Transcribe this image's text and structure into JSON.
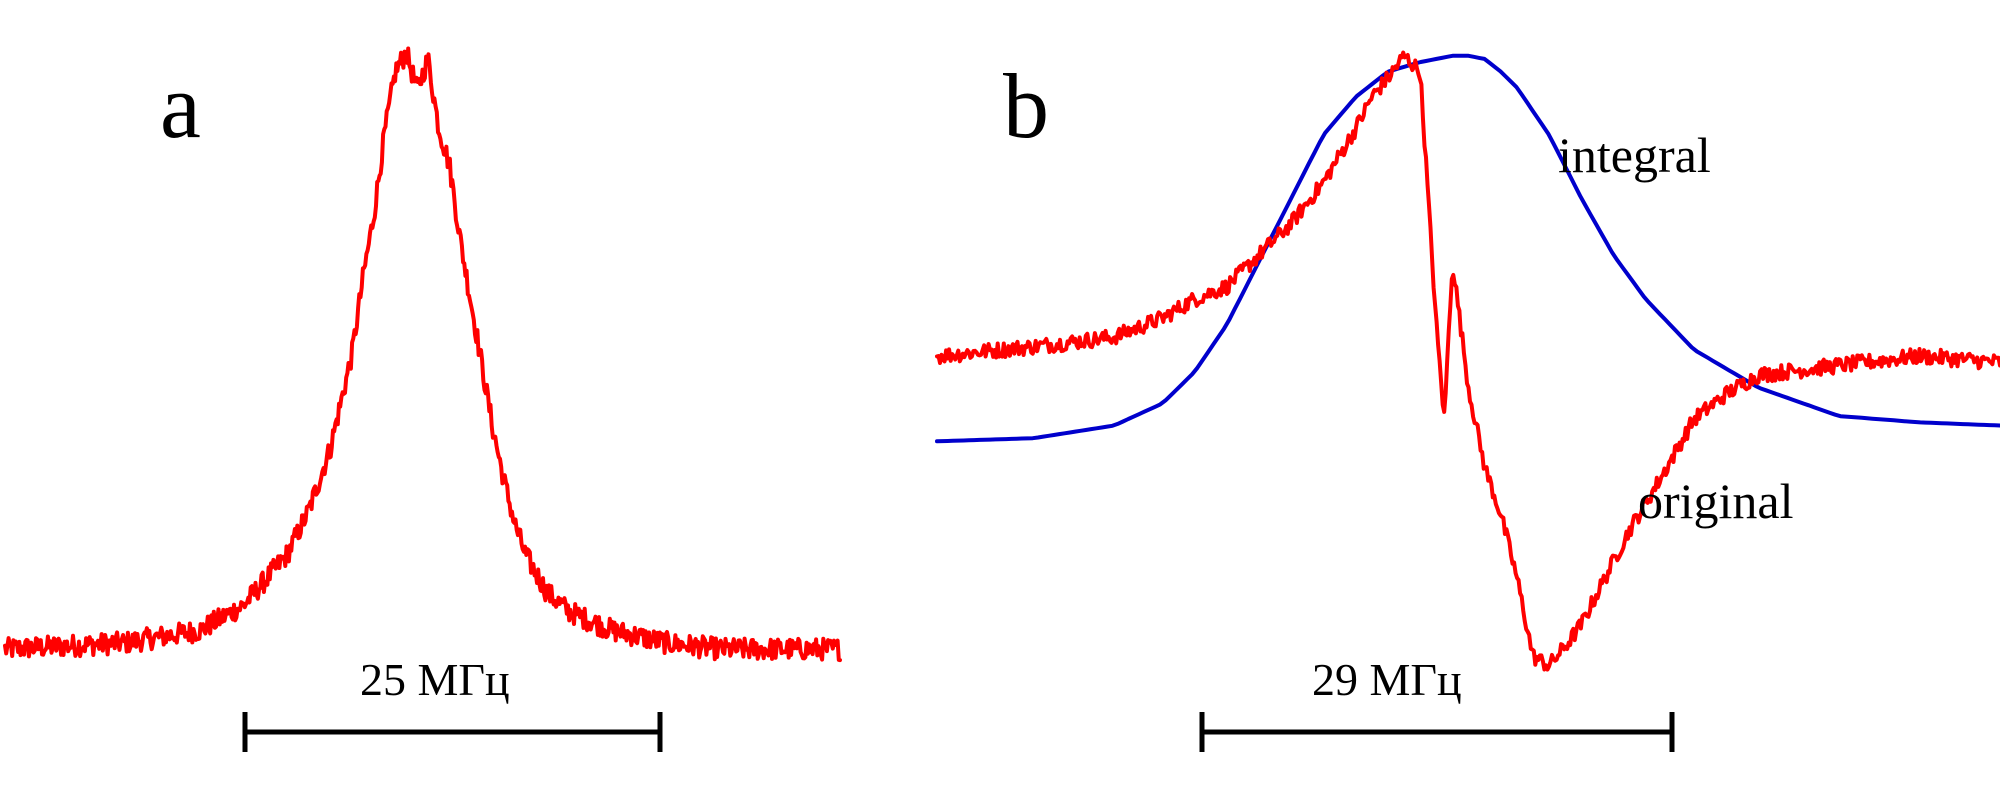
{
  "colors": {
    "original": "#ff0000",
    "integral": "#0000cc",
    "scale_bar": "#000000"
  },
  "chart_data": [
    {
      "type": "line",
      "panel_label": "a",
      "title": "",
      "xlabel": "",
      "ylabel": "",
      "axes_visible": false,
      "scale_bar": {
        "label": "25 МГц",
        "value": 25,
        "unit": "МГц"
      },
      "xlim": [
        -36,
        41
      ],
      "ylim": [
        0,
        1
      ],
      "series": [
        {
          "name": "",
          "color": "#ff0000",
          "x": [
            -36,
            -25,
            -18,
            -14,
            -12,
            -10,
            -8,
            -6,
            -4,
            -3,
            -2,
            -1,
            0,
            1,
            2,
            3,
            4,
            5,
            6,
            7,
            8,
            9,
            10,
            11,
            12,
            14,
            16,
            20,
            25,
            30,
            41
          ],
          "y": [
            0.03,
            0.04,
            0.06,
            0.1,
            0.14,
            0.18,
            0.25,
            0.35,
            0.5,
            0.62,
            0.72,
            0.85,
            0.95,
            0.98,
            0.92,
            0.97,
            0.86,
            0.8,
            0.68,
            0.58,
            0.48,
            0.38,
            0.3,
            0.23,
            0.18,
            0.12,
            0.09,
            0.06,
            0.04,
            0.03,
            0.03
          ]
        }
      ]
    },
    {
      "type": "line",
      "panel_label": "b",
      "title": "",
      "xlabel": "",
      "ylabel": "",
      "axes_visible": false,
      "scale_bar": {
        "label": "29 МГц",
        "value": 29,
        "unit": "МГц"
      },
      "xlim": [
        -31,
        35
      ],
      "ylim": [
        -1,
        1
      ],
      "series": [
        {
          "name": "original",
          "color": "#ff0000",
          "x": [
            -31,
            -25,
            -20,
            -17,
            -15,
            -13,
            -11,
            -9,
            -7,
            -5,
            -4,
            -3,
            -2,
            -1,
            0,
            0.5,
            1,
            2,
            3,
            4,
            5,
            6,
            7,
            8,
            9,
            10,
            12,
            14,
            16,
            18,
            20,
            25,
            30,
            35
          ],
          "y": [
            0.0,
            0.03,
            0.06,
            0.12,
            0.18,
            0.22,
            0.32,
            0.42,
            0.55,
            0.72,
            0.82,
            0.88,
            0.95,
            0.9,
            0.1,
            -0.2,
            0.3,
            -0.1,
            -0.35,
            -0.5,
            -0.7,
            -0.95,
            -0.98,
            -0.92,
            -0.85,
            -0.75,
            -0.55,
            -0.38,
            -0.2,
            -0.12,
            -0.06,
            -0.03,
            0.0,
            -0.02
          ]
        },
        {
          "name": "integral",
          "color": "#0000cc",
          "x": [
            -31,
            -25,
            -20,
            -17,
            -15,
            -13,
            -11,
            -9,
            -7,
            -5,
            -3,
            -1,
            1,
            2,
            3,
            4,
            5,
            7,
            9,
            11,
            13,
            16,
            20,
            25,
            30,
            35
          ],
          "y": [
            -0.27,
            -0.26,
            -0.22,
            -0.15,
            -0.05,
            0.1,
            0.3,
            0.5,
            0.7,
            0.82,
            0.9,
            0.93,
            0.95,
            0.95,
            0.94,
            0.9,
            0.85,
            0.7,
            0.5,
            0.32,
            0.18,
            0.02,
            -0.1,
            -0.19,
            -0.21,
            -0.22
          ]
        }
      ]
    }
  ]
}
